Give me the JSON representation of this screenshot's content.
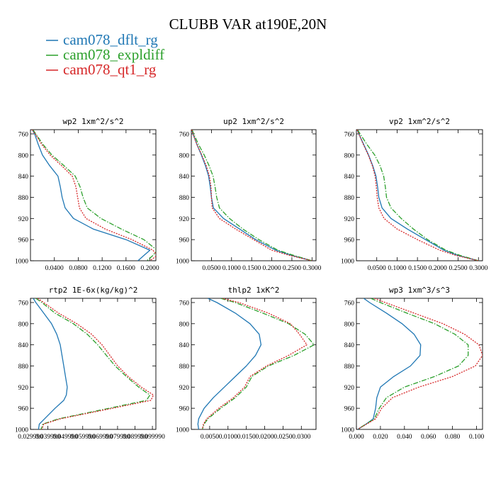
{
  "title": "CLUBB VAR at190E,20N",
  "legend": [
    {
      "label": "cam078_dflt_rg",
      "color": "#1f77b4",
      "dash": "solid"
    },
    {
      "label": "cam078_expldiff",
      "color": "#2ca02c",
      "dash": "dashdot"
    },
    {
      "label": "cam078_qt1_rg",
      "color": "#d62728",
      "dash": "dotted"
    }
  ],
  "chart_data": [
    {
      "type": "line",
      "title": "wp2   1xm^2/s^2",
      "xlim": [
        0.0,
        0.21
      ],
      "ylim": [
        1000,
        752
      ],
      "xticks": [
        0.04,
        0.08,
        0.12,
        0.16,
        0.2
      ],
      "xticklabels": [
        "0.0400",
        "0.0800",
        "0.1200",
        "0.1600",
        "0.2000"
      ],
      "yticks": [
        760,
        800,
        840,
        880,
        920,
        960,
        1000
      ],
      "y": [
        752,
        760,
        780,
        800,
        820,
        840,
        860,
        880,
        900,
        920,
        940,
        960,
        980,
        990,
        1000
      ],
      "series": [
        {
          "x": [
            0.003,
            0.007,
            0.013,
            0.02,
            0.032,
            0.046,
            0.05,
            0.053,
            0.058,
            0.072,
            0.105,
            0.16,
            0.2,
            0.19,
            0.18
          ]
        },
        {
          "x": [
            0.004,
            0.009,
            0.021,
            0.036,
            0.056,
            0.075,
            0.083,
            0.088,
            0.095,
            0.118,
            0.152,
            0.19,
            0.212,
            0.205,
            0.195
          ]
        },
        {
          "x": [
            0.003,
            0.008,
            0.019,
            0.033,
            0.052,
            0.07,
            0.076,
            0.079,
            0.082,
            0.093,
            0.125,
            0.17,
            0.205,
            0.212,
            0.2
          ]
        }
      ]
    },
    {
      "type": "line",
      "title": "up2   1xm^2/s^2",
      "xlim": [
        0.0,
        0.31
      ],
      "ylim": [
        1000,
        752
      ],
      "xticks": [
        0.05,
        0.1,
        0.15,
        0.2,
        0.25,
        0.3
      ],
      "xticklabels": [
        "0.0500",
        "0.1000",
        "0.1500",
        "0.2000",
        "0.2500",
        "0.3000"
      ],
      "yticks": [
        760,
        800,
        840,
        880,
        920,
        960,
        1000
      ],
      "y": [
        752,
        760,
        780,
        800,
        820,
        840,
        860,
        880,
        900,
        920,
        940,
        960,
        980,
        990,
        1000
      ],
      "series": [
        {
          "x": [
            0.001,
            0.004,
            0.014,
            0.025,
            0.035,
            0.043,
            0.047,
            0.05,
            0.055,
            0.08,
            0.12,
            0.16,
            0.21,
            0.25,
            0.3
          ]
        },
        {
          "x": [
            0.002,
            0.006,
            0.018,
            0.032,
            0.044,
            0.054,
            0.059,
            0.063,
            0.07,
            0.095,
            0.128,
            0.168,
            0.215,
            0.255,
            0.3
          ]
        },
        {
          "x": [
            0.001,
            0.004,
            0.014,
            0.026,
            0.037,
            0.045,
            0.049,
            0.05,
            0.052,
            0.07,
            0.11,
            0.155,
            0.2,
            0.245,
            0.3
          ]
        }
      ]
    },
    {
      "type": "line",
      "title": "vp2   1xm^2/s^2",
      "xlim": [
        0.0,
        0.31
      ],
      "ylim": [
        1000,
        752
      ],
      "xticks": [
        0.05,
        0.1,
        0.15,
        0.2,
        0.25,
        0.3
      ],
      "xticklabels": [
        "0.0500",
        "0.1000",
        "0.1500",
        "0.2000",
        "0.2500",
        "0.3000"
      ],
      "yticks": [
        760,
        800,
        840,
        880,
        920,
        960,
        1000
      ],
      "y": [
        752,
        760,
        780,
        800,
        820,
        840,
        860,
        880,
        900,
        920,
        940,
        960,
        980,
        990,
        1000
      ],
      "series": [
        {
          "x": [
            0.002,
            0.006,
            0.018,
            0.03,
            0.04,
            0.048,
            0.052,
            0.055,
            0.063,
            0.085,
            0.125,
            0.17,
            0.215,
            0.25,
            0.3
          ]
        },
        {
          "x": [
            0.003,
            0.009,
            0.026,
            0.045,
            0.058,
            0.067,
            0.071,
            0.074,
            0.085,
            0.11,
            0.14,
            0.175,
            0.22,
            0.255,
            0.3
          ]
        },
        {
          "x": [
            0.002,
            0.006,
            0.017,
            0.029,
            0.039,
            0.046,
            0.049,
            0.051,
            0.055,
            0.068,
            0.1,
            0.15,
            0.205,
            0.245,
            0.3
          ]
        }
      ]
    },
    {
      "type": "line",
      "title": "rtp2   1E-6x(kg/kg)^2",
      "xlim": [
        0.0299,
        0.1019
      ],
      "ylim": [
        1000,
        752
      ],
      "xticks": [
        0.0299,
        0.0399,
        0.0499,
        0.0599,
        0.0699,
        0.0799,
        0.0899,
        0.0999
      ],
      "xticklabels": [
        "0.029990",
        "0.039990",
        "0.049990",
        "0.059990",
        "0.069990",
        "0.079990",
        "0.089990",
        "0.099990"
      ],
      "yticks": [
        760,
        800,
        840,
        880,
        920,
        960,
        1000
      ],
      "y": [
        752,
        760,
        780,
        800,
        820,
        840,
        860,
        880,
        900,
        920,
        935,
        945,
        960,
        980,
        990,
        1000
      ],
      "series": [
        {
          "x": [
            0.0315,
            0.033,
            0.0375,
            0.042,
            0.045,
            0.047,
            0.048,
            0.049,
            0.05,
            0.051,
            0.0505,
            0.049,
            0.044,
            0.038,
            0.035,
            0.0345
          ]
        },
        {
          "x": [
            0.033,
            0.0365,
            0.044,
            0.0545,
            0.0625,
            0.0685,
            0.0735,
            0.0785,
            0.085,
            0.092,
            0.0985,
            0.0965,
            0.075,
            0.046,
            0.037,
            0.036
          ]
        },
        {
          "x": [
            0.034,
            0.0375,
            0.046,
            0.0565,
            0.065,
            0.071,
            0.0755,
            0.08,
            0.086,
            0.0935,
            0.1005,
            0.099,
            0.077,
            0.047,
            0.0375,
            0.0365
          ]
        }
      ]
    },
    {
      "type": "line",
      "title": "thlp2   1xK^2",
      "xlim": [
        0.0,
        0.034
      ],
      "ylim": [
        1000,
        752
      ],
      "xticks": [
        0.005,
        0.01,
        0.015,
        0.02,
        0.025,
        0.03
      ],
      "xticklabels": [
        "0.0050",
        "0.0100",
        "0.0150",
        "0.0200",
        "0.0250",
        "0.0300"
      ],
      "yticks": [
        760,
        800,
        840,
        880,
        920,
        960,
        1000
      ],
      "y": [
        752,
        760,
        780,
        800,
        820,
        840,
        860,
        880,
        900,
        920,
        940,
        960,
        980,
        990,
        1000
      ],
      "series": [
        {
          "x": [
            0.0045,
            0.007,
            0.012,
            0.016,
            0.0185,
            0.019,
            0.0175,
            0.015,
            0.012,
            0.009,
            0.006,
            0.0035,
            0.002,
            0.0018,
            0.002
          ]
        },
        {
          "x": [
            0.008,
            0.012,
            0.0195,
            0.0265,
            0.031,
            0.0335,
            0.028,
            0.021,
            0.0165,
            0.015,
            0.012,
            0.008,
            0.0045,
            0.0035,
            0.003
          ]
        },
        {
          "x": [
            0.0085,
            0.013,
            0.021,
            0.027,
            0.0295,
            0.0315,
            0.0265,
            0.0205,
            0.016,
            0.0145,
            0.0115,
            0.0075,
            0.0042,
            0.0033,
            0.003
          ]
        }
      ]
    },
    {
      "type": "line",
      "title": "wp3   1xm^3/s^3",
      "xlim": [
        0.0,
        0.105
      ],
      "ylim": [
        1000,
        752
      ],
      "xticks": [
        0.0,
        0.02,
        0.04,
        0.06,
        0.08,
        0.1
      ],
      "xticklabels": [
        "0.000",
        "0.020",
        "0.040",
        "0.060",
        "0.080",
        "0.100"
      ],
      "yticks": [
        760,
        800,
        840,
        880,
        920,
        960,
        1000
      ],
      "y": [
        752,
        760,
        780,
        800,
        820,
        840,
        860,
        880,
        900,
        920,
        940,
        960,
        980,
        990,
        1000
      ],
      "series": [
        {
          "x": [
            0.006,
            0.011,
            0.025,
            0.038,
            0.048,
            0.0535,
            0.053,
            0.045,
            0.031,
            0.02,
            0.017,
            0.016,
            0.014,
            0.008,
            0.001
          ]
        },
        {
          "x": [
            0.012,
            0.02,
            0.042,
            0.065,
            0.082,
            0.093,
            0.093,
            0.085,
            0.065,
            0.04,
            0.025,
            0.019,
            0.015,
            0.008,
            0.001
          ]
        },
        {
          "x": [
            0.015,
            0.024,
            0.048,
            0.072,
            0.09,
            0.102,
            0.105,
            0.099,
            0.08,
            0.052,
            0.03,
            0.021,
            0.016,
            0.0085,
            0.001
          ]
        }
      ]
    }
  ]
}
